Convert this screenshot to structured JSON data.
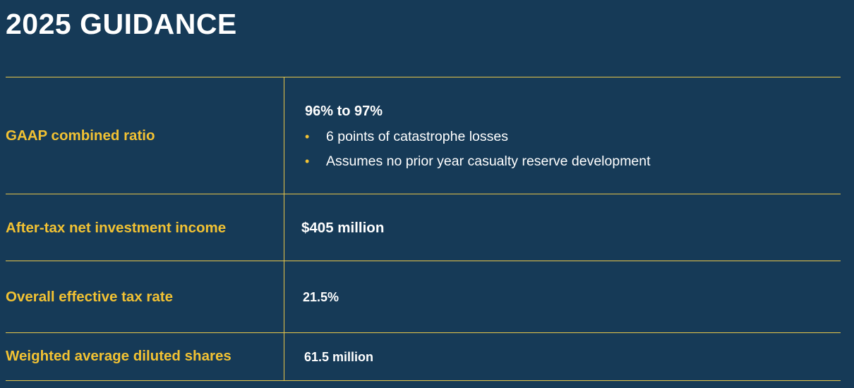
{
  "title": "2025 GUIDANCE",
  "rows": [
    {
      "label": "GAAP combined ratio",
      "value": "96% to 97%",
      "bullets": [
        "6 points of catastrophe losses",
        "Assumes no prior year casualty reserve development"
      ]
    },
    {
      "label": "After-tax net investment income",
      "value": "$405 million"
    },
    {
      "label": "Overall effective tax rate",
      "value": "21.5%"
    },
    {
      "label": "Weighted average diluted shares",
      "value": "61.5 million"
    }
  ],
  "bullet_glyph": "•",
  "colors": {
    "background": "#163a57",
    "accent": "#f2c233",
    "rule": "#e8c64a",
    "text": "#ffffff"
  }
}
